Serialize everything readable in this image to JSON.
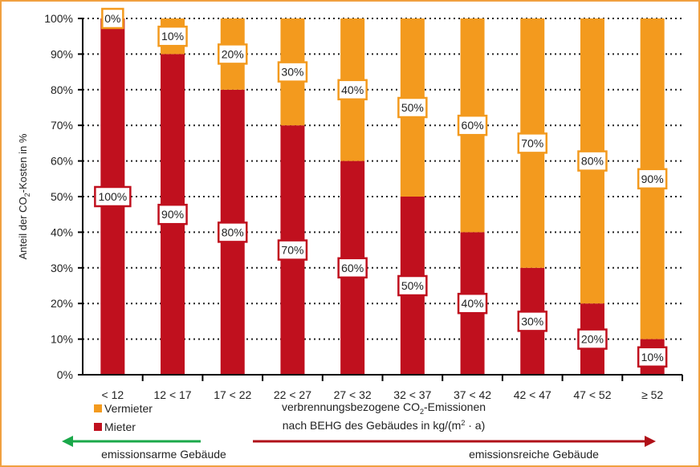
{
  "chart_data": {
    "type": "bar",
    "stacked": true,
    "categories": [
      "< 12",
      "12 < 17",
      "17 < 22",
      "22 < 27",
      "27 < 32",
      "32 < 37",
      "37 < 42",
      "42 < 47",
      "47 < 52",
      "≥ 52"
    ],
    "series": [
      {
        "name": "Mieter",
        "color": "#c0101e",
        "values": [
          100,
          90,
          80,
          70,
          60,
          50,
          40,
          30,
          20,
          10
        ]
      },
      {
        "name": "Vermieter",
        "color": "#f39a1e",
        "values": [
          0,
          10,
          20,
          30,
          40,
          50,
          60,
          70,
          80,
          90
        ]
      }
    ],
    "ylabel_parts": [
      "Anteil der CO",
      "2",
      "-Kosten in %"
    ],
    "xlabel_line1_parts": [
      "verbrennungsbezogene  CO",
      "2",
      "-Emissionen"
    ],
    "xlabel_line2_parts": [
      "nach BEHG des Gebäudes in kg/(m",
      "2",
      " · a)"
    ],
    "ylim": [
      0,
      100
    ],
    "yticks": [
      "0%",
      "10%",
      "20%",
      "30%",
      "40%",
      "50%",
      "60%",
      "70%",
      "80%",
      "90%",
      "100%"
    ],
    "grid": "horizontal dotted",
    "legend_position": "bottom-left",
    "annotations": {
      "left_arrow": {
        "label": "emissionsarme Gebäude",
        "color": "#1aa84a"
      },
      "right_arrow": {
        "label": "emissionsreiche Gebäude",
        "color": "#b01018"
      }
    }
  }
}
